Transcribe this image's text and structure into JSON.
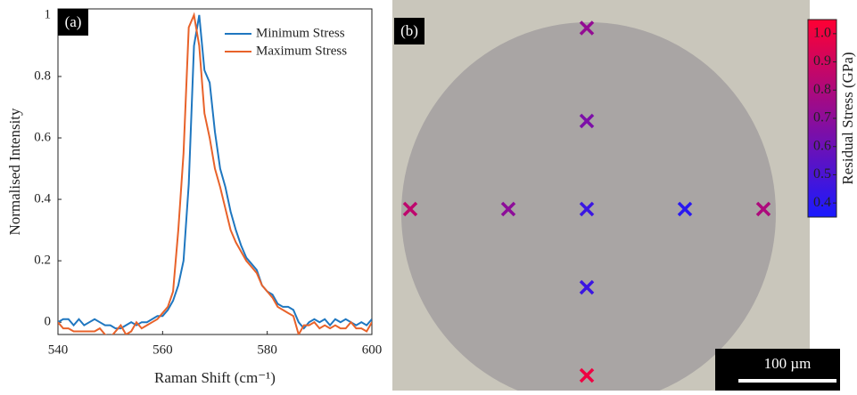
{
  "chart_data": [
    {
      "type": "line",
      "title": "(a)",
      "x_label": "Raman Shift (cm⁻¹)",
      "y_label": "Normalised Intensity",
      "x": [
        540,
        541,
        542,
        543,
        544,
        545,
        546,
        547,
        548,
        549,
        550,
        551,
        552,
        553,
        554,
        555,
        556,
        557,
        558,
        559,
        560,
        561,
        562,
        563,
        564,
        565,
        566,
        567,
        568,
        569,
        570,
        571,
        572,
        573,
        574,
        575,
        576,
        577,
        578,
        579,
        580,
        581,
        582,
        583,
        584,
        585,
        586,
        587,
        588,
        589,
        590,
        591,
        592,
        593,
        594,
        595,
        596,
        597,
        598,
        599,
        600
      ],
      "series": [
        {
          "name": "Minimum Stress",
          "color": "#1f77c0",
          "values": [
            0,
            0.01,
            0.01,
            -0.01,
            0.01,
            -0.01,
            0,
            0.01,
            0,
            -0.01,
            -0.01,
            -0.02,
            -0.02,
            -0.01,
            0,
            -0.01,
            0,
            0,
            0.01,
            0.02,
            0.02,
            0.04,
            0.07,
            0.12,
            0.2,
            0.45,
            0.9,
            1.0,
            0.82,
            0.78,
            0.62,
            0.5,
            0.44,
            0.36,
            0.3,
            0.25,
            0.21,
            0.19,
            0.17,
            0.12,
            0.1,
            0.09,
            0.06,
            0.05,
            0.05,
            0.04,
            0,
            -0.02,
            0,
            0.01,
            0,
            0.01,
            -0.01,
            0.01,
            0,
            0.01,
            0,
            -0.01,
            0,
            -0.01,
            0.01
          ]
        },
        {
          "name": "Maximum Stress",
          "color": "#e8622a",
          "values": [
            0,
            -0.02,
            -0.02,
            -0.03,
            -0.03,
            -0.03,
            -0.03,
            -0.03,
            -0.02,
            -0.04,
            -0.05,
            -0.03,
            -0.01,
            -0.04,
            -0.03,
            0,
            -0.02,
            -0.01,
            0,
            0.01,
            0.03,
            0.05,
            0.1,
            0.3,
            0.55,
            0.96,
            1.0,
            0.9,
            0.68,
            0.6,
            0.5,
            0.44,
            0.37,
            0.3,
            0.26,
            0.23,
            0.2,
            0.18,
            0.16,
            0.12,
            0.1,
            0.08,
            0.05,
            0.04,
            0.03,
            0.02,
            -0.04,
            -0.01,
            -0.01,
            0,
            -0.02,
            -0.01,
            -0.02,
            -0.01,
            -0.02,
            -0.02,
            0,
            -0.02,
            -0.02,
            -0.03,
            0
          ]
        }
      ],
      "xlim": [
        540,
        600
      ],
      "xticks": [
        540,
        560,
        580,
        600
      ],
      "ylim": [
        -0.04,
        1.02
      ],
      "yticks": [
        0,
        0.2,
        0.4,
        0.6,
        0.8,
        1
      ],
      "legend": "upper right"
    },
    {
      "type": "scatter",
      "title": "(b)",
      "x": [
        -180,
        -80,
        0,
        100,
        180,
        0,
        0,
        0,
        0
      ],
      "y": [
        0,
        0,
        0,
        0,
        0,
        185,
        90,
        -80,
        -170
      ],
      "values": [
        0.85,
        0.7,
        0.45,
        0.4,
        0.8,
        0.72,
        0.65,
        0.45,
        1.0
      ],
      "colorbar": {
        "label": "Residual Stress (GPa)",
        "lim": [
          0.35,
          1.05
        ],
        "colors": [
          "#1a1aff",
          "#ff0033"
        ],
        "ticks": [
          {
            "value": 1,
            "label": "1.0"
          },
          0.9,
          0.8,
          0.7,
          0.6,
          0.5,
          0.4
        ]
      },
      "scalebar": {
        "length": 100,
        "label": "100 µm"
      }
    }
  ]
}
